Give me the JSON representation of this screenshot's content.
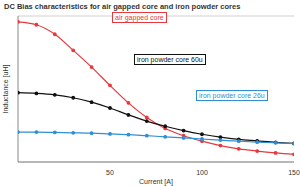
{
  "chart_data": {
    "type": "line",
    "title": "DC Bias characteristics for air gapped core and iron powder cores",
    "x_label": "Current [A]",
    "y_label": "Inductance [uH]",
    "x": [
      0,
      10,
      20,
      30,
      40,
      50,
      60,
      70,
      80,
      90,
      100,
      110,
      120,
      130,
      140,
      150
    ],
    "series": [
      {
        "name": "air gapped core",
        "color": "#e8383d",
        "marker": "circle",
        "values": [
          1920,
          1880,
          1750,
          1530,
          1300,
          1050,
          810,
          610,
          460,
          360,
          285,
          225,
          180,
          150,
          125,
          105
        ]
      },
      {
        "name": "iron powder core 60u",
        "color": "#111111",
        "marker": "circle",
        "values": [
          950,
          940,
          920,
          880,
          820,
          740,
          645,
          560,
          490,
          430,
          380,
          340,
          310,
          290,
          270,
          255
        ]
      },
      {
        "name": "iron powder core 26u",
        "color": "#2f8fd6",
        "marker": "circle",
        "values": [
          410,
          410,
          405,
          400,
          395,
          385,
          375,
          360,
          345,
          330,
          315,
          300,
          285,
          272,
          262,
          252
        ]
      }
    ],
    "xlim": [
      0,
      150
    ],
    "xticks": [
      50,
      100,
      150
    ],
    "ylim": [
      0,
      2000
    ],
    "yticks": [
      0,
      500,
      1000,
      1500,
      2000
    ],
    "grid": true,
    "tick_labels": "x"
  }
}
